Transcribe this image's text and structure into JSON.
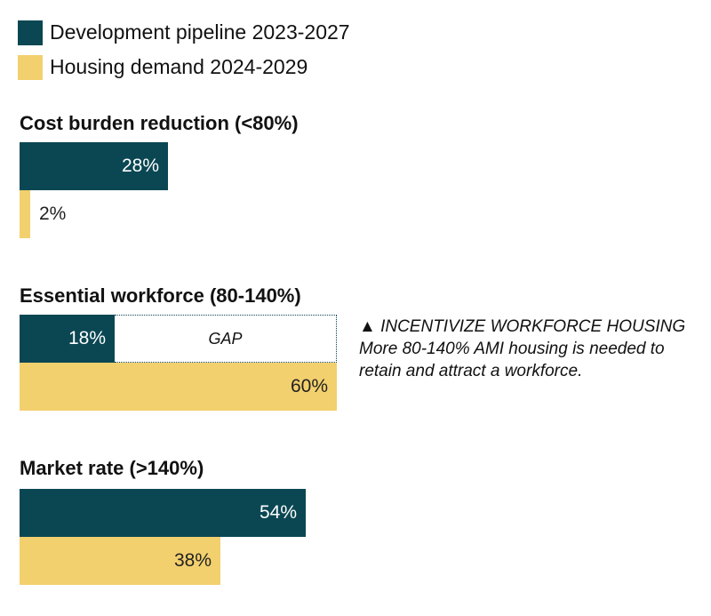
{
  "chart_data": {
    "type": "bar",
    "orientation": "horizontal",
    "legend": {
      "placement": "top-left",
      "items": [
        {
          "name": "Development pipeline 2023-2027",
          "color": "#0b4753"
        },
        {
          "name": "Housing demand 2024-2029",
          "color": "#f3d06e"
        }
      ]
    },
    "value_max": 65,
    "groups": [
      {
        "title": "Cost burden reduction (<80%)",
        "pipeline": 28,
        "pipeline_label": "28%",
        "demand": 2,
        "demand_label": "2%"
      },
      {
        "title": "Essential workforce (80-140%)",
        "pipeline": 18,
        "pipeline_label": "18%",
        "demand": 60,
        "demand_label": "60%",
        "gap_label": "GAP"
      },
      {
        "title": "Market rate (>140%)",
        "pipeline": 54,
        "pipeline_label": "54%",
        "demand": 38,
        "demand_label": "38%"
      }
    ],
    "annotation": {
      "heading": "▲ INCENTIVIZE WORKFORCE HOUSING",
      "body": "More 80-140% AMI housing is needed to retain and attract a workforce."
    }
  },
  "colors": {
    "pipeline": "#0b4753",
    "demand": "#f3d06e",
    "label_on_dark": "#ffffff",
    "label_on_light": "#222222"
  }
}
